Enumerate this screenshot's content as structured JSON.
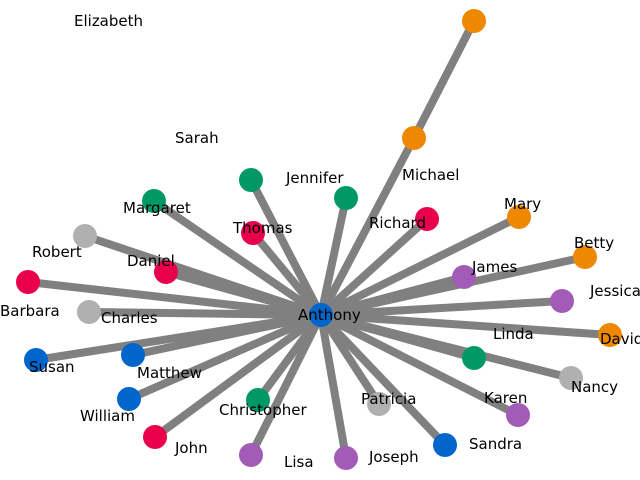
{
  "graph": {
    "edge_color": "#808080",
    "palette": {
      "orange": "#ee8800",
      "green": "#009966",
      "crimson": "#e8004d",
      "gray": "#b0b0b0",
      "purple": "#a35bb8",
      "blue": "#0066cc"
    },
    "nodes": [
      {
        "id": "Anthony",
        "label": "Anthony",
        "color": "blue"
      },
      {
        "id": "Elizabeth",
        "label": "Elizabeth",
        "color": "orange"
      },
      {
        "id": "Michael",
        "label": "Michael",
        "color": "orange"
      },
      {
        "id": "Sarah",
        "label": "Sarah",
        "color": "green"
      },
      {
        "id": "Jennifer",
        "label": "Jennifer",
        "color": "green"
      },
      {
        "id": "Margaret",
        "label": "Margaret",
        "color": "green"
      },
      {
        "id": "Thomas",
        "label": "Thomas",
        "color": "crimson"
      },
      {
        "id": "Richard",
        "label": "Richard",
        "color": "crimson"
      },
      {
        "id": "Mary",
        "label": "Mary",
        "color": "orange"
      },
      {
        "id": "Robert",
        "label": "Robert",
        "color": "gray"
      },
      {
        "id": "Daniel",
        "label": "Daniel",
        "color": "crimson"
      },
      {
        "id": "Betty",
        "label": "Betty",
        "color": "orange"
      },
      {
        "id": "James",
        "label": "James",
        "color": "purple"
      },
      {
        "id": "Barbara",
        "label": "Barbara",
        "color": "crimson"
      },
      {
        "id": "Charles",
        "label": "Charles",
        "color": "gray"
      },
      {
        "id": "Jessica",
        "label": "Jessica",
        "color": "purple"
      },
      {
        "id": "David",
        "label": "David",
        "color": "orange"
      },
      {
        "id": "Linda",
        "label": "Linda",
        "color": "green"
      },
      {
        "id": "Susan",
        "label": "Susan",
        "color": "blue"
      },
      {
        "id": "Matthew",
        "label": "Matthew",
        "color": "blue"
      },
      {
        "id": "Nancy",
        "label": "Nancy",
        "color": "gray"
      },
      {
        "id": "William",
        "label": "William",
        "color": "blue"
      },
      {
        "id": "Christopher",
        "label": "Christopher",
        "color": "green"
      },
      {
        "id": "Patricia",
        "label": "Patricia",
        "color": "gray"
      },
      {
        "id": "Karen",
        "label": "Karen",
        "color": "purple"
      },
      {
        "id": "John",
        "label": "John",
        "color": "crimson"
      },
      {
        "id": "Sandra",
        "label": "Sandra",
        "color": "blue"
      },
      {
        "id": "Lisa",
        "label": "Lisa",
        "color": "purple"
      },
      {
        "id": "Joseph",
        "label": "Joseph",
        "color": "purple"
      }
    ],
    "edges": [
      {
        "source": "Elizabeth",
        "target": "Michael"
      },
      {
        "source": "Michael",
        "target": "Anthony"
      },
      {
        "source": "Sarah",
        "target": "Anthony"
      },
      {
        "source": "Jennifer",
        "target": "Anthony"
      },
      {
        "source": "Margaret",
        "target": "Anthony"
      },
      {
        "source": "Thomas",
        "target": "Anthony"
      },
      {
        "source": "Richard",
        "target": "Anthony"
      },
      {
        "source": "Mary",
        "target": "Anthony"
      },
      {
        "source": "Robert",
        "target": "Anthony"
      },
      {
        "source": "Daniel",
        "target": "Anthony"
      },
      {
        "source": "Betty",
        "target": "Anthony"
      },
      {
        "source": "James",
        "target": "Anthony"
      },
      {
        "source": "Barbara",
        "target": "Anthony"
      },
      {
        "source": "Charles",
        "target": "Anthony"
      },
      {
        "source": "Jessica",
        "target": "Anthony"
      },
      {
        "source": "David",
        "target": "Anthony"
      },
      {
        "source": "Linda",
        "target": "Anthony"
      },
      {
        "source": "Susan",
        "target": "Anthony"
      },
      {
        "source": "Matthew",
        "target": "Anthony"
      },
      {
        "source": "Nancy",
        "target": "Anthony"
      },
      {
        "source": "William",
        "target": "Anthony"
      },
      {
        "source": "Christopher",
        "target": "Anthony"
      },
      {
        "source": "Patricia",
        "target": "Anthony"
      },
      {
        "source": "Karen",
        "target": "Anthony"
      },
      {
        "source": "John",
        "target": "Anthony"
      },
      {
        "source": "Sandra",
        "target": "Anthony"
      },
      {
        "source": "Lisa",
        "target": "Anthony"
      },
      {
        "source": "Joseph",
        "target": "Anthony"
      }
    ]
  }
}
